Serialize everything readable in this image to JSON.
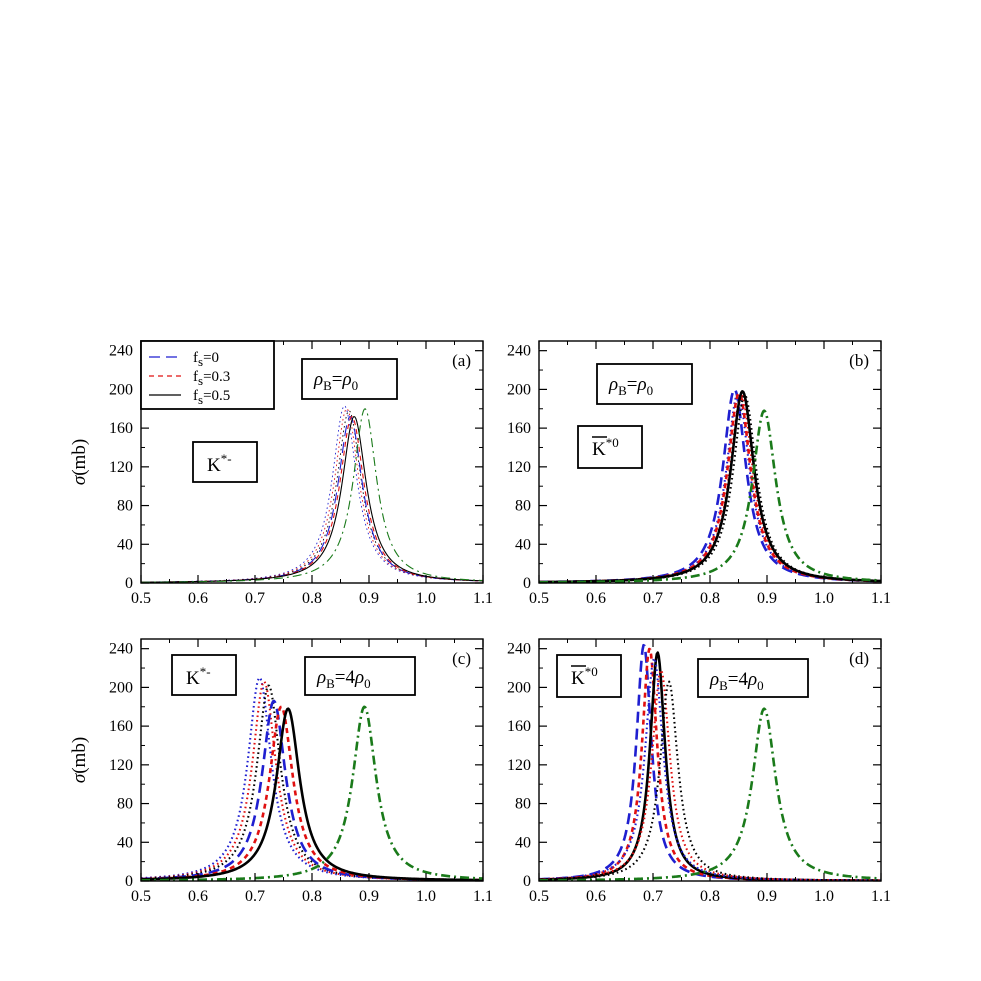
{
  "chart_data": [
    {
      "type": "line",
      "panel": "(a)",
      "ylabel": "σ(mb)",
      "xlabel": "",
      "xlim": [
        0.5,
        1.1
      ],
      "ylim": [
        0,
        250
      ],
      "x_ticks": [
        "0.5",
        "0.6",
        "0.7",
        "0.8",
        "0.9",
        "1.0",
        "1.1"
      ],
      "y_ticks": [
        "0",
        "40",
        "80",
        "120",
        "160",
        "200",
        "240"
      ],
      "line_weight": "thin",
      "label_particle": "K*-",
      "label_density": "ρB=ρ0",
      "legend": [
        {
          "name": "fs=0",
          "style": "long-dash",
          "color": "#1f1fd0"
        },
        {
          "name": "fs=0.3",
          "style": "short-dash",
          "color": "#e01010"
        },
        {
          "name": "fs=0.5",
          "style": "solid",
          "color": "#000000"
        }
      ],
      "series": [
        {
          "style": "dot",
          "color": "#1f1fd0",
          "peak_x": 0.857,
          "peak_y": 183,
          "gamma": 0.052
        },
        {
          "style": "dot",
          "color": "#e01010",
          "peak_x": 0.861,
          "peak_y": 180,
          "gamma": 0.052
        },
        {
          "style": "dot",
          "color": "#000000",
          "peak_x": 0.865,
          "peak_y": 178,
          "gamma": 0.052
        },
        {
          "style": "long-dash",
          "color": "#1f1fd0",
          "peak_x": 0.867,
          "peak_y": 172,
          "gamma": 0.052
        },
        {
          "style": "short-dash",
          "color": "#e01010",
          "peak_x": 0.87,
          "peak_y": 172,
          "gamma": 0.052
        },
        {
          "style": "solid",
          "color": "#000000",
          "peak_x": 0.874,
          "peak_y": 172,
          "gamma": 0.052
        },
        {
          "style": "dash-dot",
          "color": "#1a7a1a",
          "peak_x": 0.893,
          "peak_y": 180,
          "gamma": 0.05
        }
      ]
    },
    {
      "type": "line",
      "panel": "(b)",
      "ylabel": "",
      "xlabel": "",
      "xlim": [
        0.5,
        1.1
      ],
      "ylim": [
        0,
        250
      ],
      "x_ticks": [
        "0.5",
        "0.6",
        "0.7",
        "0.8",
        "0.9",
        "1.0",
        "1.1"
      ],
      "y_ticks": [
        "0",
        "40",
        "80",
        "120",
        "160",
        "200",
        "240"
      ],
      "line_weight": "thick",
      "label_particle": "K̄*0",
      "label_density": "ρB=ρ0",
      "series": [
        {
          "style": "long-dash",
          "color": "#1f1fd0",
          "peak_x": 0.843,
          "peak_y": 200,
          "gamma": 0.05
        },
        {
          "style": "dot",
          "color": "#1f1fd0",
          "peak_x": 0.849,
          "peak_y": 196,
          "gamma": 0.05
        },
        {
          "style": "short-dash",
          "color": "#e01010",
          "peak_x": 0.851,
          "peak_y": 196,
          "gamma": 0.05
        },
        {
          "style": "dot",
          "color": "#e01010",
          "peak_x": 0.855,
          "peak_y": 194,
          "gamma": 0.05
        },
        {
          "style": "solid",
          "color": "#000000",
          "peak_x": 0.857,
          "peak_y": 198,
          "gamma": 0.05
        },
        {
          "style": "dot",
          "color": "#000000",
          "peak_x": 0.861,
          "peak_y": 194,
          "gamma": 0.05
        },
        {
          "style": "dash-dot",
          "color": "#1a7a1a",
          "peak_x": 0.895,
          "peak_y": 178,
          "gamma": 0.05
        }
      ]
    },
    {
      "type": "line",
      "panel": "(c)",
      "ylabel": "σ(mb)",
      "xlabel": "",
      "xlim": [
        0.5,
        1.1
      ],
      "ylim": [
        0,
        250
      ],
      "x_ticks": [
        "0.5",
        "0.6",
        "0.7",
        "0.8",
        "0.9",
        "1.0",
        "1.1"
      ],
      "y_ticks": [
        "0",
        "40",
        "80",
        "120",
        "160",
        "200",
        "240"
      ],
      "line_weight": "thick",
      "label_particle": "K*-",
      "label_density": "ρB=4ρ0",
      "series": [
        {
          "style": "dot",
          "color": "#1f1fd0",
          "peak_x": 0.708,
          "peak_y": 210,
          "gamma": 0.05
        },
        {
          "style": "dot",
          "color": "#e01010",
          "peak_x": 0.716,
          "peak_y": 206,
          "gamma": 0.05
        },
        {
          "style": "dot",
          "color": "#000000",
          "peak_x": 0.724,
          "peak_y": 202,
          "gamma": 0.05
        },
        {
          "style": "long-dash",
          "color": "#1f1fd0",
          "peak_x": 0.733,
          "peak_y": 186,
          "gamma": 0.05
        },
        {
          "style": "short-dash",
          "color": "#e01010",
          "peak_x": 0.746,
          "peak_y": 180,
          "gamma": 0.05
        },
        {
          "style": "solid",
          "color": "#000000",
          "peak_x": 0.758,
          "peak_y": 178,
          "gamma": 0.05
        },
        {
          "style": "dash-dot",
          "color": "#1a7a1a",
          "peak_x": 0.892,
          "peak_y": 180,
          "gamma": 0.05
        }
      ]
    },
    {
      "type": "line",
      "panel": "(d)",
      "ylabel": "",
      "xlabel": "",
      "xlim": [
        0.5,
        1.1
      ],
      "ylim": [
        0,
        250
      ],
      "x_ticks": [
        "0.5",
        "0.6",
        "0.7",
        "0.8",
        "0.9",
        "1.0",
        "1.1"
      ],
      "y_ticks": [
        "0",
        "40",
        "80",
        "120",
        "160",
        "200",
        "240"
      ],
      "line_weight": "thick",
      "label_particle": "K̄*0",
      "label_density": "ρB=4ρ0",
      "series": [
        {
          "style": "long-dash",
          "color": "#1f1fd0",
          "peak_x": 0.684,
          "peak_y": 244,
          "gamma": 0.032
        },
        {
          "style": "short-dash",
          "color": "#e01010",
          "peak_x": 0.694,
          "peak_y": 240,
          "gamma": 0.032
        },
        {
          "style": "solid",
          "color": "#000000",
          "peak_x": 0.708,
          "peak_y": 236,
          "gamma": 0.032
        },
        {
          "style": "dot",
          "color": "#1f1fd0",
          "peak_x": 0.702,
          "peak_y": 230,
          "gamma": 0.038
        },
        {
          "style": "dot",
          "color": "#e01010",
          "peak_x": 0.714,
          "peak_y": 218,
          "gamma": 0.038
        },
        {
          "style": "dot",
          "color": "#000000",
          "peak_x": 0.728,
          "peak_y": 206,
          "gamma": 0.038
        },
        {
          "style": "dash-dot",
          "color": "#1a7a1a",
          "peak_x": 0.895,
          "peak_y": 178,
          "gamma": 0.05
        }
      ]
    }
  ]
}
